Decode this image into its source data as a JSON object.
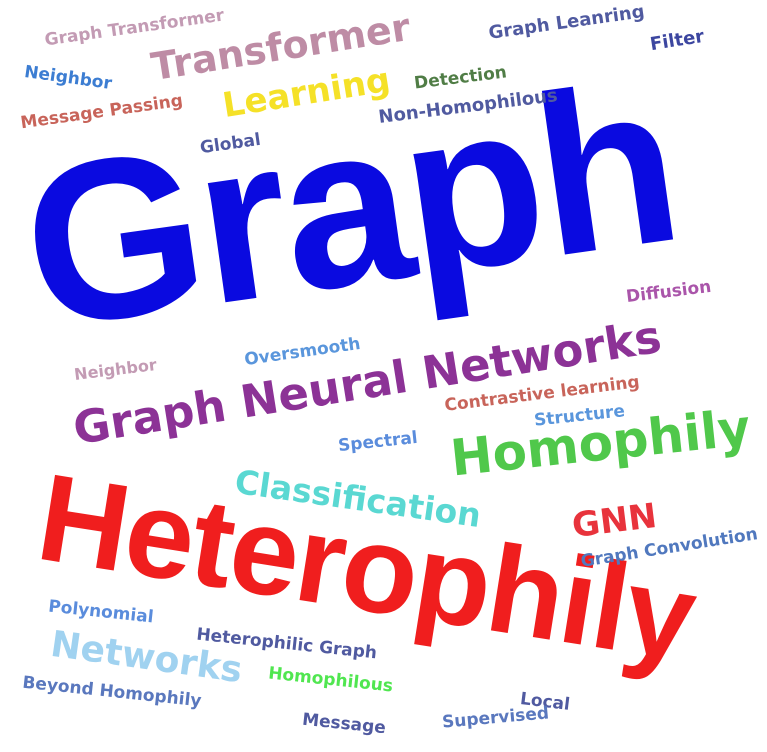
{
  "words": [
    {
      "text": "Graph",
      "color": "#0a0ae0"
    },
    {
      "text": "Heterophily",
      "color": "#f01e1e"
    },
    {
      "text": "Graph Neural Networks",
      "color": "#8c3296"
    },
    {
      "text": "Homophily",
      "color": "#50c84b"
    },
    {
      "text": "Classification",
      "color": "#5ad8d2"
    },
    {
      "text": "Transformer",
      "color": "#be8ca5"
    },
    {
      "text": "Learning",
      "color": "#f5e128"
    },
    {
      "text": "Networks",
      "color": "#a0d2f0"
    },
    {
      "text": "GNN",
      "color": "#e8333c"
    },
    {
      "text": "Graph Transformer",
      "color": "#c39bb4"
    },
    {
      "text": "Graph Leanring",
      "color": "#505aa0"
    },
    {
      "text": "Filter",
      "color": "#3c46a0"
    },
    {
      "text": "Neighbor",
      "color": "#3c7dd2"
    },
    {
      "text": "Detection",
      "color": "#507d46"
    },
    {
      "text": "Message Passing",
      "color": "#c8645a"
    },
    {
      "text": "Non-Homophilous",
      "color": "#505aa0"
    },
    {
      "text": "Global",
      "color": "#505aa0"
    },
    {
      "text": "Diffusion",
      "color": "#aa55aa"
    },
    {
      "text": "Oversmooth",
      "color": "#5a96dc"
    },
    {
      "text": "Neighbor",
      "color": "#c39bb4"
    },
    {
      "text": "Contrastive learning",
      "color": "#c8645a"
    },
    {
      "text": "Structure",
      "color": "#5a96dc"
    },
    {
      "text": "Spectral",
      "color": "#5a8cdc"
    },
    {
      "text": "Graph Convolution",
      "color": "#5078be"
    },
    {
      "text": "Polynomial",
      "color": "#5a8cdc"
    },
    {
      "text": "Heterophilic Graph",
      "color": "#505aa0"
    },
    {
      "text": "Homophilous",
      "color": "#50e650"
    },
    {
      "text": "Beyond Homophily",
      "color": "#5a78be"
    },
    {
      "text": "Local",
      "color": "#505aa0"
    },
    {
      "text": "Supervised",
      "color": "#5a78be"
    },
    {
      "text": "Message",
      "color": "#505aa0"
    }
  ]
}
